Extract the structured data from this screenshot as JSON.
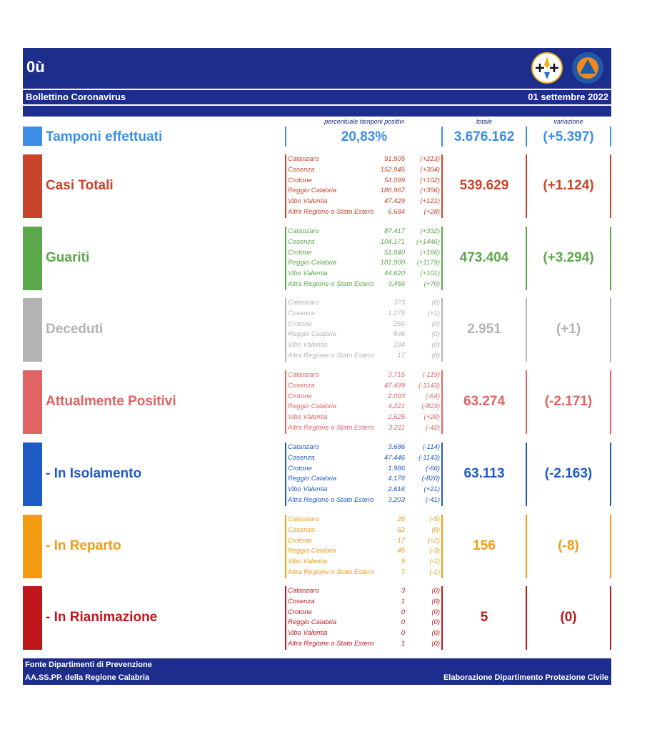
{
  "header": {
    "title": "0ù",
    "subtitle": "Bollettino Coronavirus",
    "date": "01 settembre 2022"
  },
  "columns": {
    "pct_label": "percentuale tamponi positivi",
    "total_label": "totale",
    "variation_label": "variazione"
  },
  "tamponi": {
    "label": "Tamponi effettuati",
    "pct": "20,83%",
    "total": "3.676.162",
    "variation": "(+5.397)",
    "color": "#3c8ee6"
  },
  "sections": [
    {
      "key": "casi",
      "label": "Casi Totali",
      "total": "539.629",
      "variation": "(+1.124)",
      "color": "#c8452b",
      "rows": [
        {
          "name": "Catanzaro",
          "value": "91.505",
          "delta": "(+213)"
        },
        {
          "name": "Cosenza",
          "value": "152.945",
          "delta": "(+304)"
        },
        {
          "name": "Crotone",
          "value": "54.099",
          "delta": "(+102)"
        },
        {
          "name": "Reggio Calabria",
          "value": "186.967",
          "delta": "(+356)"
        },
        {
          "name": "Vibo Valentia",
          "value": "47.429",
          "delta": "(+121)"
        },
        {
          "name": "Altra Regione o Stato Estero",
          "value": "6.684",
          "delta": "(+28)"
        }
      ]
    },
    {
      "key": "guariti",
      "label": "Guariti",
      "total": "473.404",
      "variation": "(+3.294)",
      "color": "#5ba84a",
      "rows": [
        {
          "name": "Catanzaro",
          "value": "87.417",
          "delta": "(+332)"
        },
        {
          "name": "Cosenza",
          "value": "104.171",
          "delta": "(+1446)"
        },
        {
          "name": "Crotone",
          "value": "51.840",
          "delta": "(+166)"
        },
        {
          "name": "Reggio Calabria",
          "value": "181.900",
          "delta": "(+1179)"
        },
        {
          "name": "Vibo Valentia",
          "value": "44.620",
          "delta": "(+101)"
        },
        {
          "name": "Altra Regione o Stato Estero",
          "value": "3.456",
          "delta": "(+70)"
        }
      ]
    },
    {
      "key": "deceduti",
      "label": "Deceduti",
      "total": "2.951",
      "variation": "(+1)",
      "color": "#b3b3b3",
      "rows": [
        {
          "name": "Catanzaro",
          "value": "373",
          "delta": "(0)"
        },
        {
          "name": "Cosenza",
          "value": "1.275",
          "delta": "(+1)"
        },
        {
          "name": "Crotone",
          "value": "256",
          "delta": "(0)"
        },
        {
          "name": "Reggio Calabria",
          "value": "846",
          "delta": "(0)"
        },
        {
          "name": "Vibo Valentia",
          "value": "184",
          "delta": "(0)"
        },
        {
          "name": "Altra Regione o Stato Estero",
          "value": "17",
          "delta": "(0)"
        }
      ]
    },
    {
      "key": "positivi",
      "label": "Attualmente Positivi",
      "total": "63.274",
      "variation": "(-2.171)",
      "color": "#e06464",
      "rows": [
        {
          "name": "Catanzaro",
          "value": "3.715",
          "delta": "(-119)"
        },
        {
          "name": "Cosenza",
          "value": "47.499",
          "delta": "(-1143)"
        },
        {
          "name": "Crotone",
          "value": "2.003",
          "delta": "(-64)"
        },
        {
          "name": "Reggio Calabria",
          "value": "4.221",
          "delta": "(-823)"
        },
        {
          "name": "Vibo Valentia",
          "value": "2.625",
          "delta": "(+20)"
        },
        {
          "name": "Altra Regione o Stato Estero",
          "value": "3.211",
          "delta": "(-42)"
        }
      ]
    },
    {
      "key": "isolamento",
      "label": "- In Isolamento",
      "total": "63.113",
      "variation": "(-2.163)",
      "color": "#1f5bc4",
      "rows": [
        {
          "name": "Catanzaro",
          "value": "3.686",
          "delta": "(-114)"
        },
        {
          "name": "Cosenza",
          "value": "47.446",
          "delta": "(-1143)"
        },
        {
          "name": "Crotone",
          "value": "1.986",
          "delta": "(-66)"
        },
        {
          "name": "Reggio Calabria",
          "value": "4.176",
          "delta": "(-820)"
        },
        {
          "name": "Vibo Valentia",
          "value": "2.616",
          "delta": "(+21)"
        },
        {
          "name": "Altra Regione o Stato Estero",
          "value": "3.203",
          "delta": "(-41)"
        }
      ]
    },
    {
      "key": "reparto",
      "label": "- In Reparto",
      "total": "156",
      "variation": "(-8)",
      "color": "#f39c12",
      "rows": [
        {
          "name": "Catanzaro",
          "value": "26",
          "delta": "(-5)"
        },
        {
          "name": "Cosenza",
          "value": "52",
          "delta": "(0)"
        },
        {
          "name": "Crotone",
          "value": "17",
          "delta": "(+2)"
        },
        {
          "name": "Reggio Calabria",
          "value": "45",
          "delta": "(-3)"
        },
        {
          "name": "Vibo Valentia",
          "value": "9",
          "delta": "(-1)"
        },
        {
          "name": "Altra Regione o Stato Estero",
          "value": "7",
          "delta": "(-1)"
        }
      ]
    },
    {
      "key": "rianimazione",
      "label": "- In Rianimazione",
      "total": "5",
      "variation": "(0)",
      "color": "#c0171c",
      "rows": [
        {
          "name": "Catanzaro",
          "value": "3",
          "delta": "(0)"
        },
        {
          "name": "Cosenza",
          "value": "1",
          "delta": "(0)"
        },
        {
          "name": "Crotone",
          "value": "0",
          "delta": "(0)"
        },
        {
          "name": "Reggio Calabria",
          "value": "0",
          "delta": "(0)"
        },
        {
          "name": "Vibo Valentia",
          "value": "0",
          "delta": "(0)"
        },
        {
          "name": "Altra Regione o Stato Estero",
          "value": "1",
          "delta": "(0)"
        }
      ]
    }
  ],
  "footer": {
    "source_line1": "Fonte Dipartimenti di Prevenzione",
    "source_line2": "AA.SS.PP.  della Regione Calabria",
    "credit": "Elaborazione Dipartimento Protezione Civile"
  }
}
